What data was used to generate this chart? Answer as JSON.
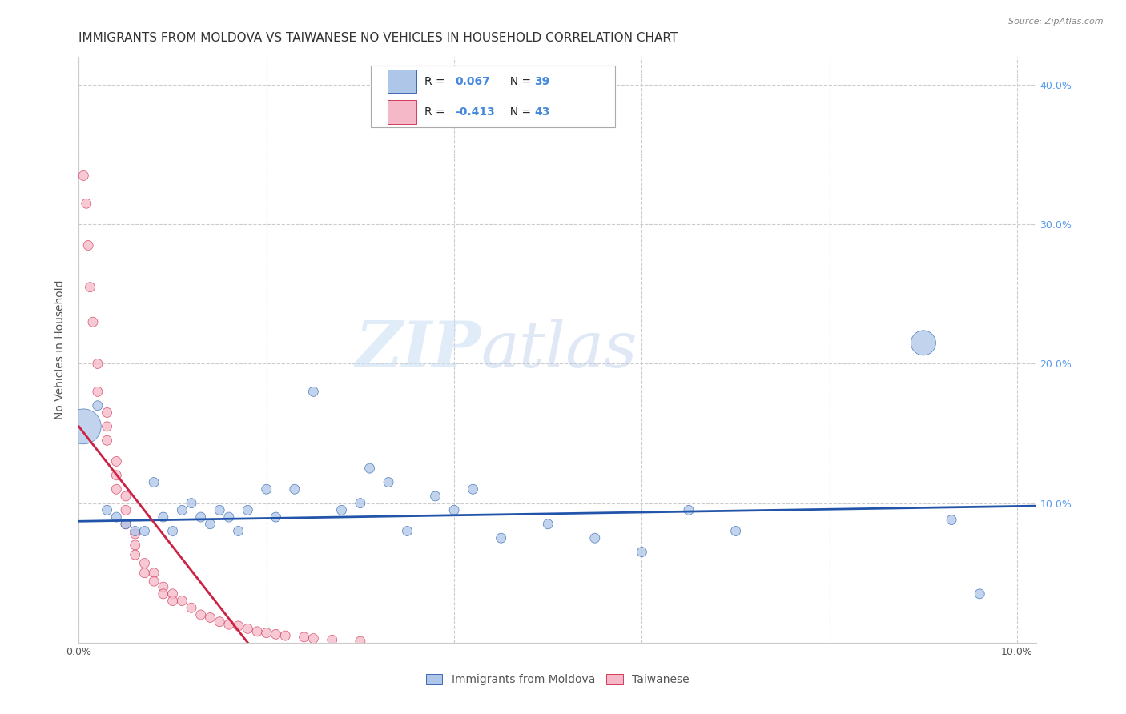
{
  "title": "IMMIGRANTS FROM MOLDOVA VS TAIWANESE NO VEHICLES IN HOUSEHOLD CORRELATION CHART",
  "source": "Source: ZipAtlas.com",
  "ylabel": "No Vehicles in Household",
  "legend_blue_label": "Immigrants from Moldova",
  "legend_pink_label": "Taiwanese",
  "blue_color": "#aec6e8",
  "pink_color": "#f5b8c8",
  "blue_line_color": "#2255aa",
  "pink_line_color": "#cc2244",
  "watermark_zip": "ZIP",
  "watermark_atlas": "atlas",
  "xlim": [
    0.0,
    0.102
  ],
  "ylim": [
    0.0,
    0.42
  ],
  "xtick_positions": [
    0.0,
    0.02,
    0.04,
    0.06,
    0.08,
    0.1
  ],
  "xtick_labels": [
    "0.0%",
    "",
    "",
    "",
    "",
    "10.0%"
  ],
  "ytick_positions": [
    0.0,
    0.1,
    0.2,
    0.3,
    0.4
  ],
  "ytick_labels_right": [
    "",
    "10.0%",
    "20.0%",
    "30.0%",
    "40.0%"
  ],
  "grid_color": "#cccccc",
  "background_color": "#ffffff",
  "title_fontsize": 11,
  "axis_label_fontsize": 10,
  "tick_fontsize": 9,
  "blue_x": [
    0.0005,
    0.002,
    0.003,
    0.004,
    0.005,
    0.006,
    0.007,
    0.008,
    0.009,
    0.01,
    0.011,
    0.012,
    0.013,
    0.014,
    0.015,
    0.016,
    0.017,
    0.018,
    0.02,
    0.021,
    0.023,
    0.025,
    0.028,
    0.03,
    0.031,
    0.033,
    0.035,
    0.038,
    0.04,
    0.042,
    0.045,
    0.05,
    0.055,
    0.06,
    0.065,
    0.07,
    0.09,
    0.093,
    0.096
  ],
  "blue_y": [
    0.155,
    0.17,
    0.095,
    0.09,
    0.085,
    0.08,
    0.08,
    0.115,
    0.09,
    0.08,
    0.095,
    0.1,
    0.09,
    0.085,
    0.095,
    0.09,
    0.08,
    0.095,
    0.11,
    0.09,
    0.11,
    0.18,
    0.095,
    0.1,
    0.125,
    0.115,
    0.08,
    0.105,
    0.095,
    0.11,
    0.075,
    0.085,
    0.075,
    0.065,
    0.095,
    0.08,
    0.215,
    0.088,
    0.035
  ],
  "blue_sizes": [
    400,
    30,
    30,
    30,
    30,
    30,
    30,
    30,
    30,
    30,
    30,
    30,
    30,
    30,
    30,
    30,
    30,
    30,
    30,
    30,
    30,
    30,
    30,
    30,
    30,
    30,
    30,
    30,
    30,
    30,
    30,
    30,
    30,
    30,
    30,
    30,
    200,
    30,
    30
  ],
  "pink_x": [
    0.0005,
    0.0008,
    0.001,
    0.0012,
    0.0015,
    0.002,
    0.002,
    0.003,
    0.003,
    0.003,
    0.004,
    0.004,
    0.004,
    0.005,
    0.005,
    0.005,
    0.006,
    0.006,
    0.006,
    0.007,
    0.007,
    0.008,
    0.008,
    0.009,
    0.009,
    0.01,
    0.01,
    0.011,
    0.012,
    0.013,
    0.014,
    0.015,
    0.016,
    0.017,
    0.018,
    0.019,
    0.02,
    0.021,
    0.022,
    0.024,
    0.025,
    0.027,
    0.03
  ],
  "pink_y": [
    0.335,
    0.315,
    0.285,
    0.255,
    0.23,
    0.2,
    0.18,
    0.165,
    0.155,
    0.145,
    0.13,
    0.12,
    0.11,
    0.105,
    0.095,
    0.085,
    0.078,
    0.07,
    0.063,
    0.057,
    0.05,
    0.05,
    0.044,
    0.04,
    0.035,
    0.035,
    0.03,
    0.03,
    0.025,
    0.02,
    0.018,
    0.015,
    0.013,
    0.012,
    0.01,
    0.008,
    0.007,
    0.006,
    0.005,
    0.004,
    0.003,
    0.002,
    0.001
  ],
  "pink_sizes": [
    30,
    30,
    30,
    30,
    30,
    30,
    30,
    30,
    30,
    30,
    30,
    30,
    30,
    30,
    30,
    30,
    30,
    30,
    30,
    30,
    30,
    30,
    30,
    30,
    30,
    30,
    30,
    30,
    30,
    30,
    30,
    30,
    30,
    30,
    30,
    30,
    30,
    30,
    30,
    30,
    30,
    30,
    30
  ],
  "blue_trend_x0": 0.0,
  "blue_trend_x1": 0.102,
  "blue_trend_y0": 0.087,
  "blue_trend_y1": 0.098,
  "pink_trend_x0": 0.0,
  "pink_trend_x1": 0.018,
  "pink_trend_y0": 0.155,
  "pink_trend_y1": 0.0
}
